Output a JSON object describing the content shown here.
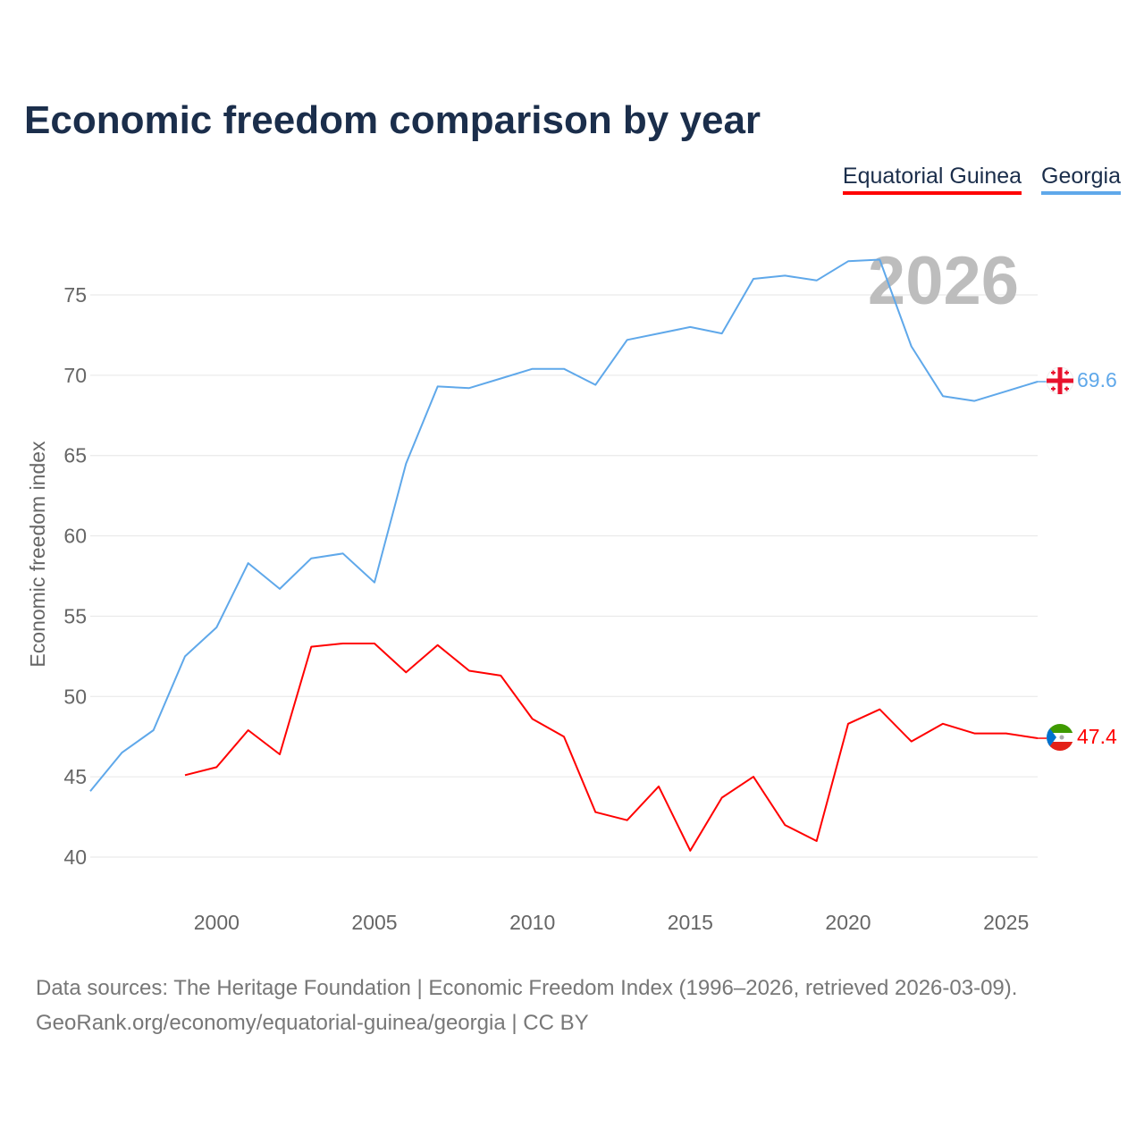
{
  "chart_data": {
    "type": "line",
    "title": "Economic freedom comparison by year",
    "ylabel": "Economic freedom index",
    "xlabel": "",
    "ylim": [
      40,
      75
    ],
    "yticks": [
      40,
      45,
      50,
      55,
      60,
      65,
      70,
      75
    ],
    "xlim": [
      1996,
      2026
    ],
    "xticks": [
      2000,
      2005,
      2010,
      2015,
      2020,
      2025
    ],
    "grid": true,
    "legend_position": "top-right",
    "year_watermark": "2026",
    "series": [
      {
        "name": "Equatorial Guinea",
        "color": "#ff0000",
        "end_label": "47.4",
        "x": [
          1999,
          2000,
          2001,
          2002,
          2003,
          2004,
          2005,
          2006,
          2007,
          2008,
          2009,
          2010,
          2011,
          2012,
          2013,
          2014,
          2015,
          2016,
          2017,
          2018,
          2019,
          2020,
          2021,
          2022,
          2023,
          2024,
          2025,
          2026
        ],
        "values": [
          45.1,
          45.6,
          47.9,
          46.4,
          53.1,
          53.3,
          53.3,
          51.5,
          53.2,
          51.6,
          51.3,
          48.6,
          47.5,
          42.8,
          42.3,
          44.4,
          40.4,
          43.7,
          45.0,
          42.0,
          41.0,
          48.3,
          49.2,
          47.2,
          48.3,
          47.7,
          47.7,
          47.4
        ]
      },
      {
        "name": "Georgia",
        "color": "#5fa8ea",
        "end_label": "69.6",
        "x": [
          1996,
          1997,
          1998,
          1999,
          2000,
          2001,
          2002,
          2003,
          2004,
          2005,
          2006,
          2007,
          2008,
          2009,
          2010,
          2011,
          2012,
          2013,
          2014,
          2015,
          2016,
          2017,
          2018,
          2019,
          2020,
          2021,
          2022,
          2023,
          2024,
          2025,
          2026
        ],
        "values": [
          44.1,
          46.5,
          47.9,
          52.5,
          54.3,
          58.3,
          56.7,
          58.6,
          58.9,
          57.1,
          64.5,
          69.3,
          69.2,
          69.8,
          70.4,
          70.4,
          69.4,
          72.2,
          72.6,
          73.0,
          72.6,
          76.0,
          76.2,
          75.9,
          77.1,
          77.2,
          71.8,
          68.7,
          68.4,
          69.0,
          69.6
        ]
      }
    ]
  },
  "source": {
    "line1": "Data sources: The Heritage Foundation | Economic Freedom Index (1996–2026, retrieved 2026-03-09).",
    "line2": "GeoRank.org/economy/equatorial-guinea/georgia | CC BY"
  }
}
